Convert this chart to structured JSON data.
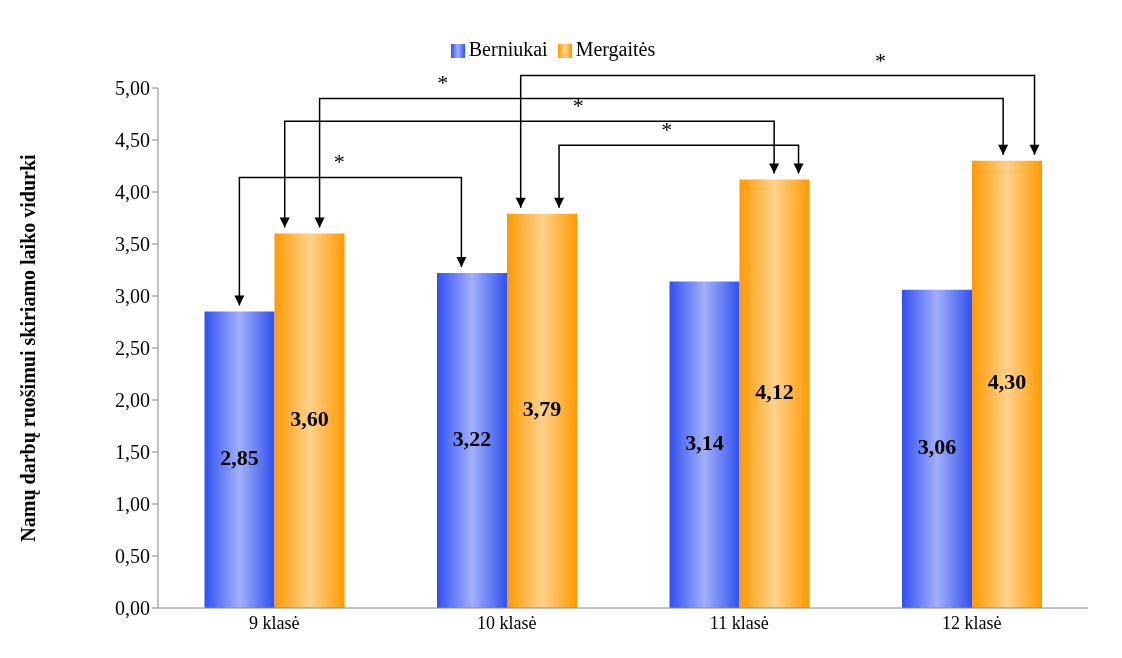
{
  "chart_data": {
    "type": "bar",
    "ylabel": "Namų darbų ruošimui skiriamo laiko vidurki",
    "categories": [
      "9 klasė",
      "10 klasė",
      "11 klasė",
      "12 klasė"
    ],
    "series": [
      {
        "name": "Berniukai",
        "color": "#3050f0",
        "values": [
          2.85,
          3.22,
          3.14,
          3.06
        ],
        "value_labels": [
          "2,85",
          "3,22",
          "3,14",
          "3,06"
        ]
      },
      {
        "name": "Mergaitės",
        "color": "#ff9a00",
        "values": [
          3.6,
          3.79,
          4.12,
          4.3
        ],
        "value_labels": [
          "3,60",
          "3,79",
          "4,12",
          "4,30"
        ]
      }
    ],
    "ylim": [
      0,
      5
    ],
    "yticks": [
      {
        "value": 0,
        "label": "0,00"
      },
      {
        "value": 0.5,
        "label": "0,50"
      },
      {
        "value": 1,
        "label": "1,00"
      },
      {
        "value": 1.5,
        "label": "1,50"
      },
      {
        "value": 2,
        "label": "2,00"
      },
      {
        "value": 2.5,
        "label": "2,50"
      },
      {
        "value": 3,
        "label": "3,00"
      },
      {
        "value": 3.5,
        "label": "3,50"
      },
      {
        "value": 4,
        "label": "4,00"
      },
      {
        "value": 4.5,
        "label": "4,50"
      },
      {
        "value": 5,
        "label": "5,00"
      }
    ],
    "grid": false,
    "legend": "top",
    "annotations": [
      "*",
      "*",
      "*",
      "*",
      "*"
    ]
  }
}
